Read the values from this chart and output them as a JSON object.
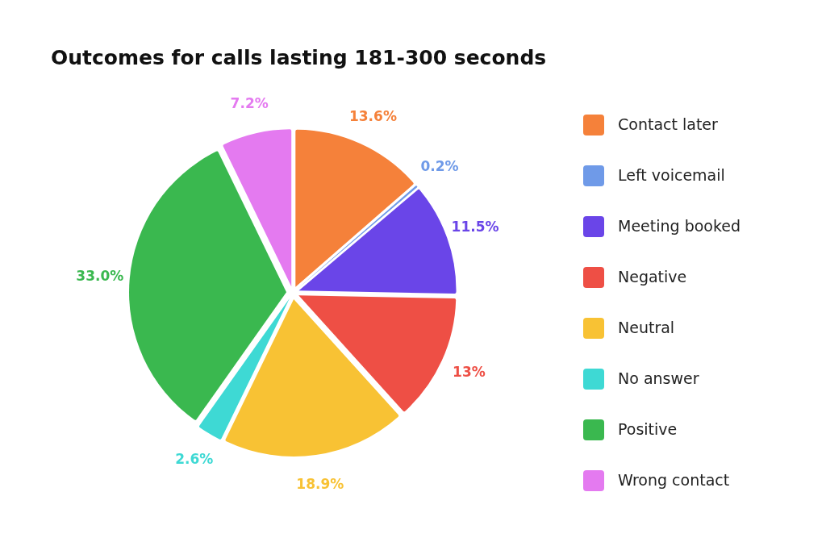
{
  "chart_data": {
    "type": "pie",
    "title": "Outcomes for calls lasting 181-300 seconds",
    "categories": [
      "Contact later",
      "Left voicemail",
      "Meeting booked",
      "Negative",
      "Neutral",
      "No answer",
      "Positive",
      "Wrong contact"
    ],
    "values": [
      13.6,
      0.2,
      11.5,
      13,
      18.9,
      2.6,
      33.0,
      7.2
    ],
    "value_labels": [
      "13.6%",
      "0.2%",
      "11.5%",
      "13%",
      "18.9%",
      "2.6%",
      "33.0%",
      "7.2%"
    ],
    "colors": [
      "#f5813a",
      "#6f9ae8",
      "#6a45e8",
      "#ee4f45",
      "#f8c234",
      "#3ed9d4",
      "#3ab84f",
      "#e47af0"
    ],
    "legend": "right"
  }
}
